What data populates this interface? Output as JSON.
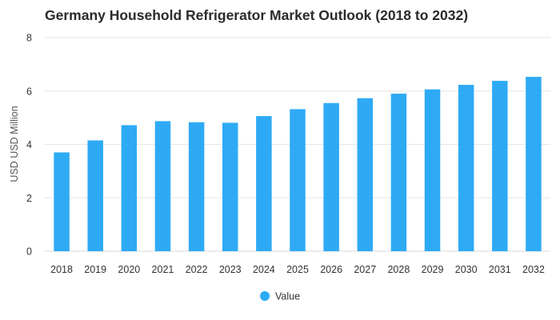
{
  "chart_data": {
    "type": "bar",
    "title": "Germany Household Refrigerator Market Outlook (2018 to 2032)",
    "xlabel": "",
    "ylabel": "USD USD Million",
    "categories": [
      "2018",
      "2019",
      "2020",
      "2021",
      "2022",
      "2023",
      "2024",
      "2025",
      "2026",
      "2027",
      "2028",
      "2029",
      "2030",
      "2031",
      "2032"
    ],
    "series": [
      {
        "name": "Value",
        "color": "#2eaaf5",
        "values": [
          3.7,
          4.15,
          4.72,
          4.87,
          4.83,
          4.81,
          5.06,
          5.32,
          5.55,
          5.73,
          5.9,
          6.06,
          6.23,
          6.38,
          6.53
        ]
      }
    ],
    "ylim": [
      0,
      8
    ],
    "yticks": [
      0,
      2,
      4,
      6,
      8
    ],
    "grid": true,
    "legend_position": "bottom-center"
  }
}
